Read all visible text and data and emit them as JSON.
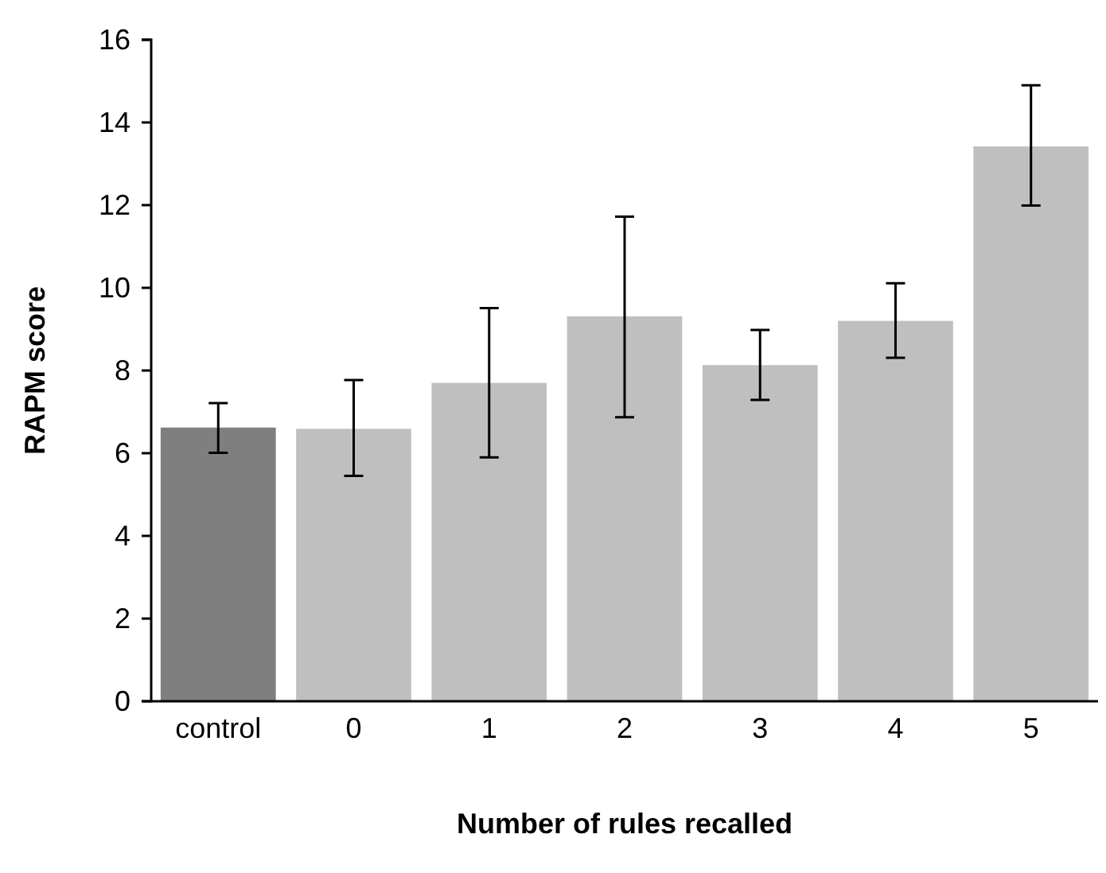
{
  "chart_data": {
    "type": "bar",
    "xlabel": "Number of rules recalled",
    "ylabel": "RAPM score",
    "categories": [
      "control",
      "0",
      "1",
      "2",
      "3",
      "4",
      "5"
    ],
    "values": [
      6.62,
      6.59,
      7.7,
      9.31,
      8.13,
      9.2,
      13.42
    ],
    "colors": [
      "#7f7f7f",
      "#bfbfbf",
      "#bfbfbf",
      "#bfbfbf",
      "#bfbfbf",
      "#bfbfbf",
      "#bfbfbf"
    ],
    "errors": [
      [
        6.01,
        7.21
      ],
      [
        5.45,
        7.77
      ],
      [
        5.9,
        9.51
      ],
      [
        6.87,
        11.72
      ],
      [
        7.29,
        8.98
      ],
      [
        8.31,
        10.11
      ],
      [
        11.99,
        14.9
      ]
    ],
    "ylim": [
      0,
      16
    ],
    "yticks": [
      0,
      2,
      4,
      6,
      8,
      10,
      12,
      14,
      16
    ],
    "grid": false
  }
}
